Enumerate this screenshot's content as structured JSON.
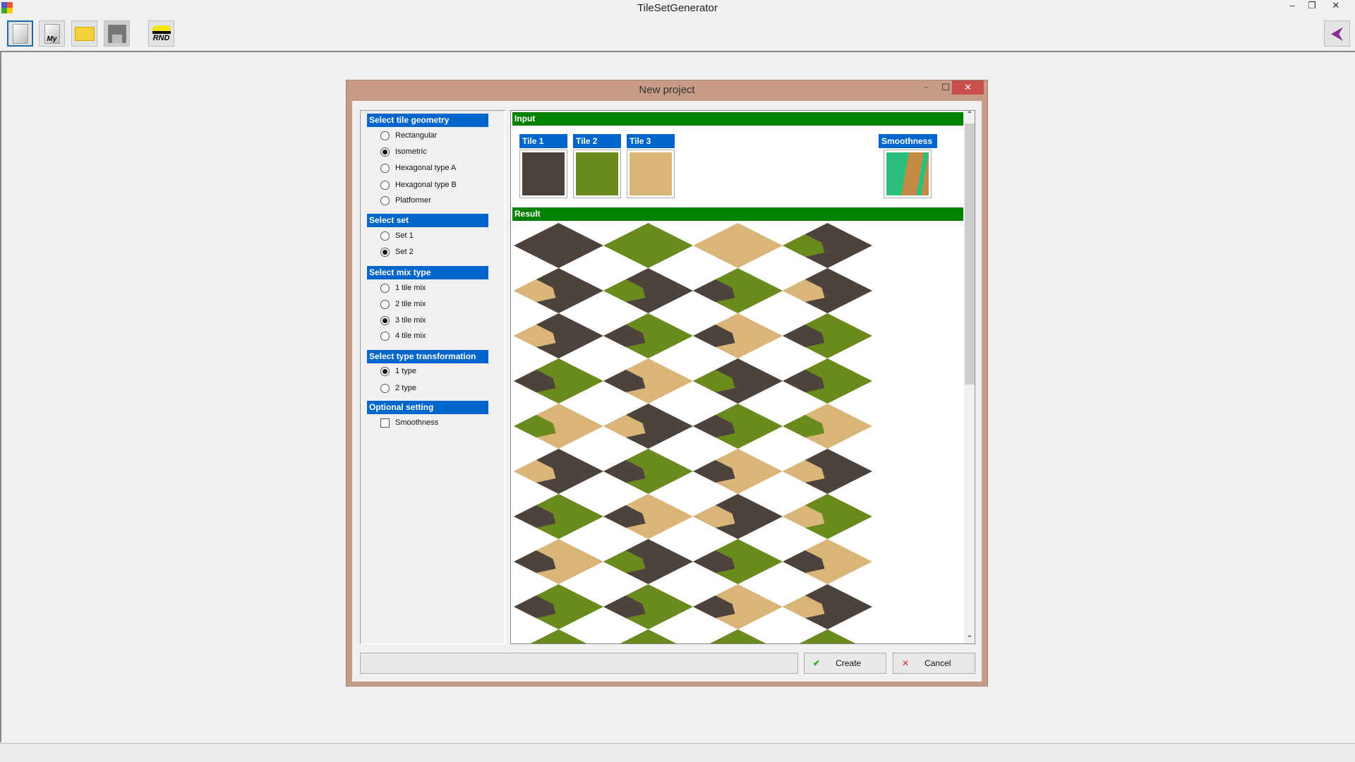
{
  "app": {
    "title": "TileSetGenerator",
    "window_controls": [
      "minimize",
      "restore",
      "close"
    ]
  },
  "toolbar": [
    {
      "name": "new-file-button",
      "icon": "new-document-icon"
    },
    {
      "name": "my-file-button",
      "icon": "my-document-icon",
      "label": "My"
    },
    {
      "name": "open-folder-button",
      "icon": "folder-icon"
    },
    {
      "name": "save-button",
      "icon": "floppy-disk-icon"
    },
    {
      "name": "random-button",
      "icon": "bandit-mask-icon",
      "label": "RND"
    }
  ],
  "toolbar_right": {
    "icon": "back-arrow-icon"
  },
  "dialog": {
    "title": "New project",
    "sections": [
      {
        "header": "Select tile geometry",
        "type": "radio",
        "options": [
          {
            "label": "Rectangular",
            "checked": false
          },
          {
            "label": "Isometric",
            "checked": true
          },
          {
            "label": "Hexagonal type A",
            "checked": false
          },
          {
            "label": "Hexagonal type B",
            "checked": false
          },
          {
            "label": "Platformer",
            "checked": false
          }
        ]
      },
      {
        "header": "Select set",
        "type": "radio",
        "options": [
          {
            "label": "Set 1",
            "checked": false
          },
          {
            "label": "Set 2",
            "checked": true
          }
        ]
      },
      {
        "header": "Select mix type",
        "type": "radio",
        "options": [
          {
            "label": "1 tile mix",
            "checked": false
          },
          {
            "label": "2 tile mix",
            "checked": false
          },
          {
            "label": "3 tile mix",
            "checked": true
          },
          {
            "label": "4 tile mix",
            "checked": false
          }
        ]
      },
      {
        "header": "Select type transformation",
        "type": "radio",
        "options": [
          {
            "label": "1 type",
            "checked": true
          },
          {
            "label": "2 type",
            "checked": false
          }
        ]
      },
      {
        "header": "Optional setting",
        "type": "checkbox",
        "options": [
          {
            "label": "Smoothness",
            "checked": false
          }
        ]
      }
    ],
    "input": {
      "header": "Input",
      "tiles": [
        {
          "label": "Tile 1",
          "color": "#4e433c"
        },
        {
          "label": "Tile 2",
          "color": "#6b8a1e"
        },
        {
          "label": "Tile 3",
          "color": "#d9b57a"
        }
      ],
      "smoothness": {
        "label": "Smoothness",
        "colors": [
          "#2abf7a",
          "#c58a45"
        ]
      }
    },
    "result": {
      "header": "Result",
      "grid": [
        [
          "d",
          "g",
          "s",
          "d"
        ],
        [
          "d",
          "d",
          "g",
          "d"
        ],
        [
          "d",
          "g",
          "s",
          "g"
        ],
        [
          "g",
          "s",
          "d",
          "g"
        ],
        [
          "s",
          "d",
          "g",
          "s"
        ],
        [
          "d",
          "g",
          "s",
          "d"
        ],
        [
          "g",
          "s",
          "d",
          "g"
        ],
        [
          "s",
          "d",
          "g",
          "s"
        ],
        [
          "g",
          "g",
          "s",
          "d"
        ],
        [
          "g",
          "g",
          "g",
          "g"
        ]
      ],
      "overlay": [
        [
          "",
          "",
          "",
          "g"
        ],
        [
          "s",
          "g",
          "d",
          "s"
        ],
        [
          "s",
          "d",
          "d",
          "d"
        ],
        [
          "d",
          "d",
          "g",
          "d"
        ],
        [
          "g",
          "s",
          "d",
          "g"
        ],
        [
          "s",
          "d",
          "d",
          "s"
        ],
        [
          "d",
          "d",
          "s",
          "s"
        ],
        [
          "d",
          "g",
          "d",
          "d"
        ],
        [
          "d",
          "d",
          "d",
          "s"
        ],
        [
          "",
          "",
          "",
          ""
        ]
      ]
    },
    "status_field": "",
    "create_label": "Create",
    "cancel_label": "Cancel"
  }
}
